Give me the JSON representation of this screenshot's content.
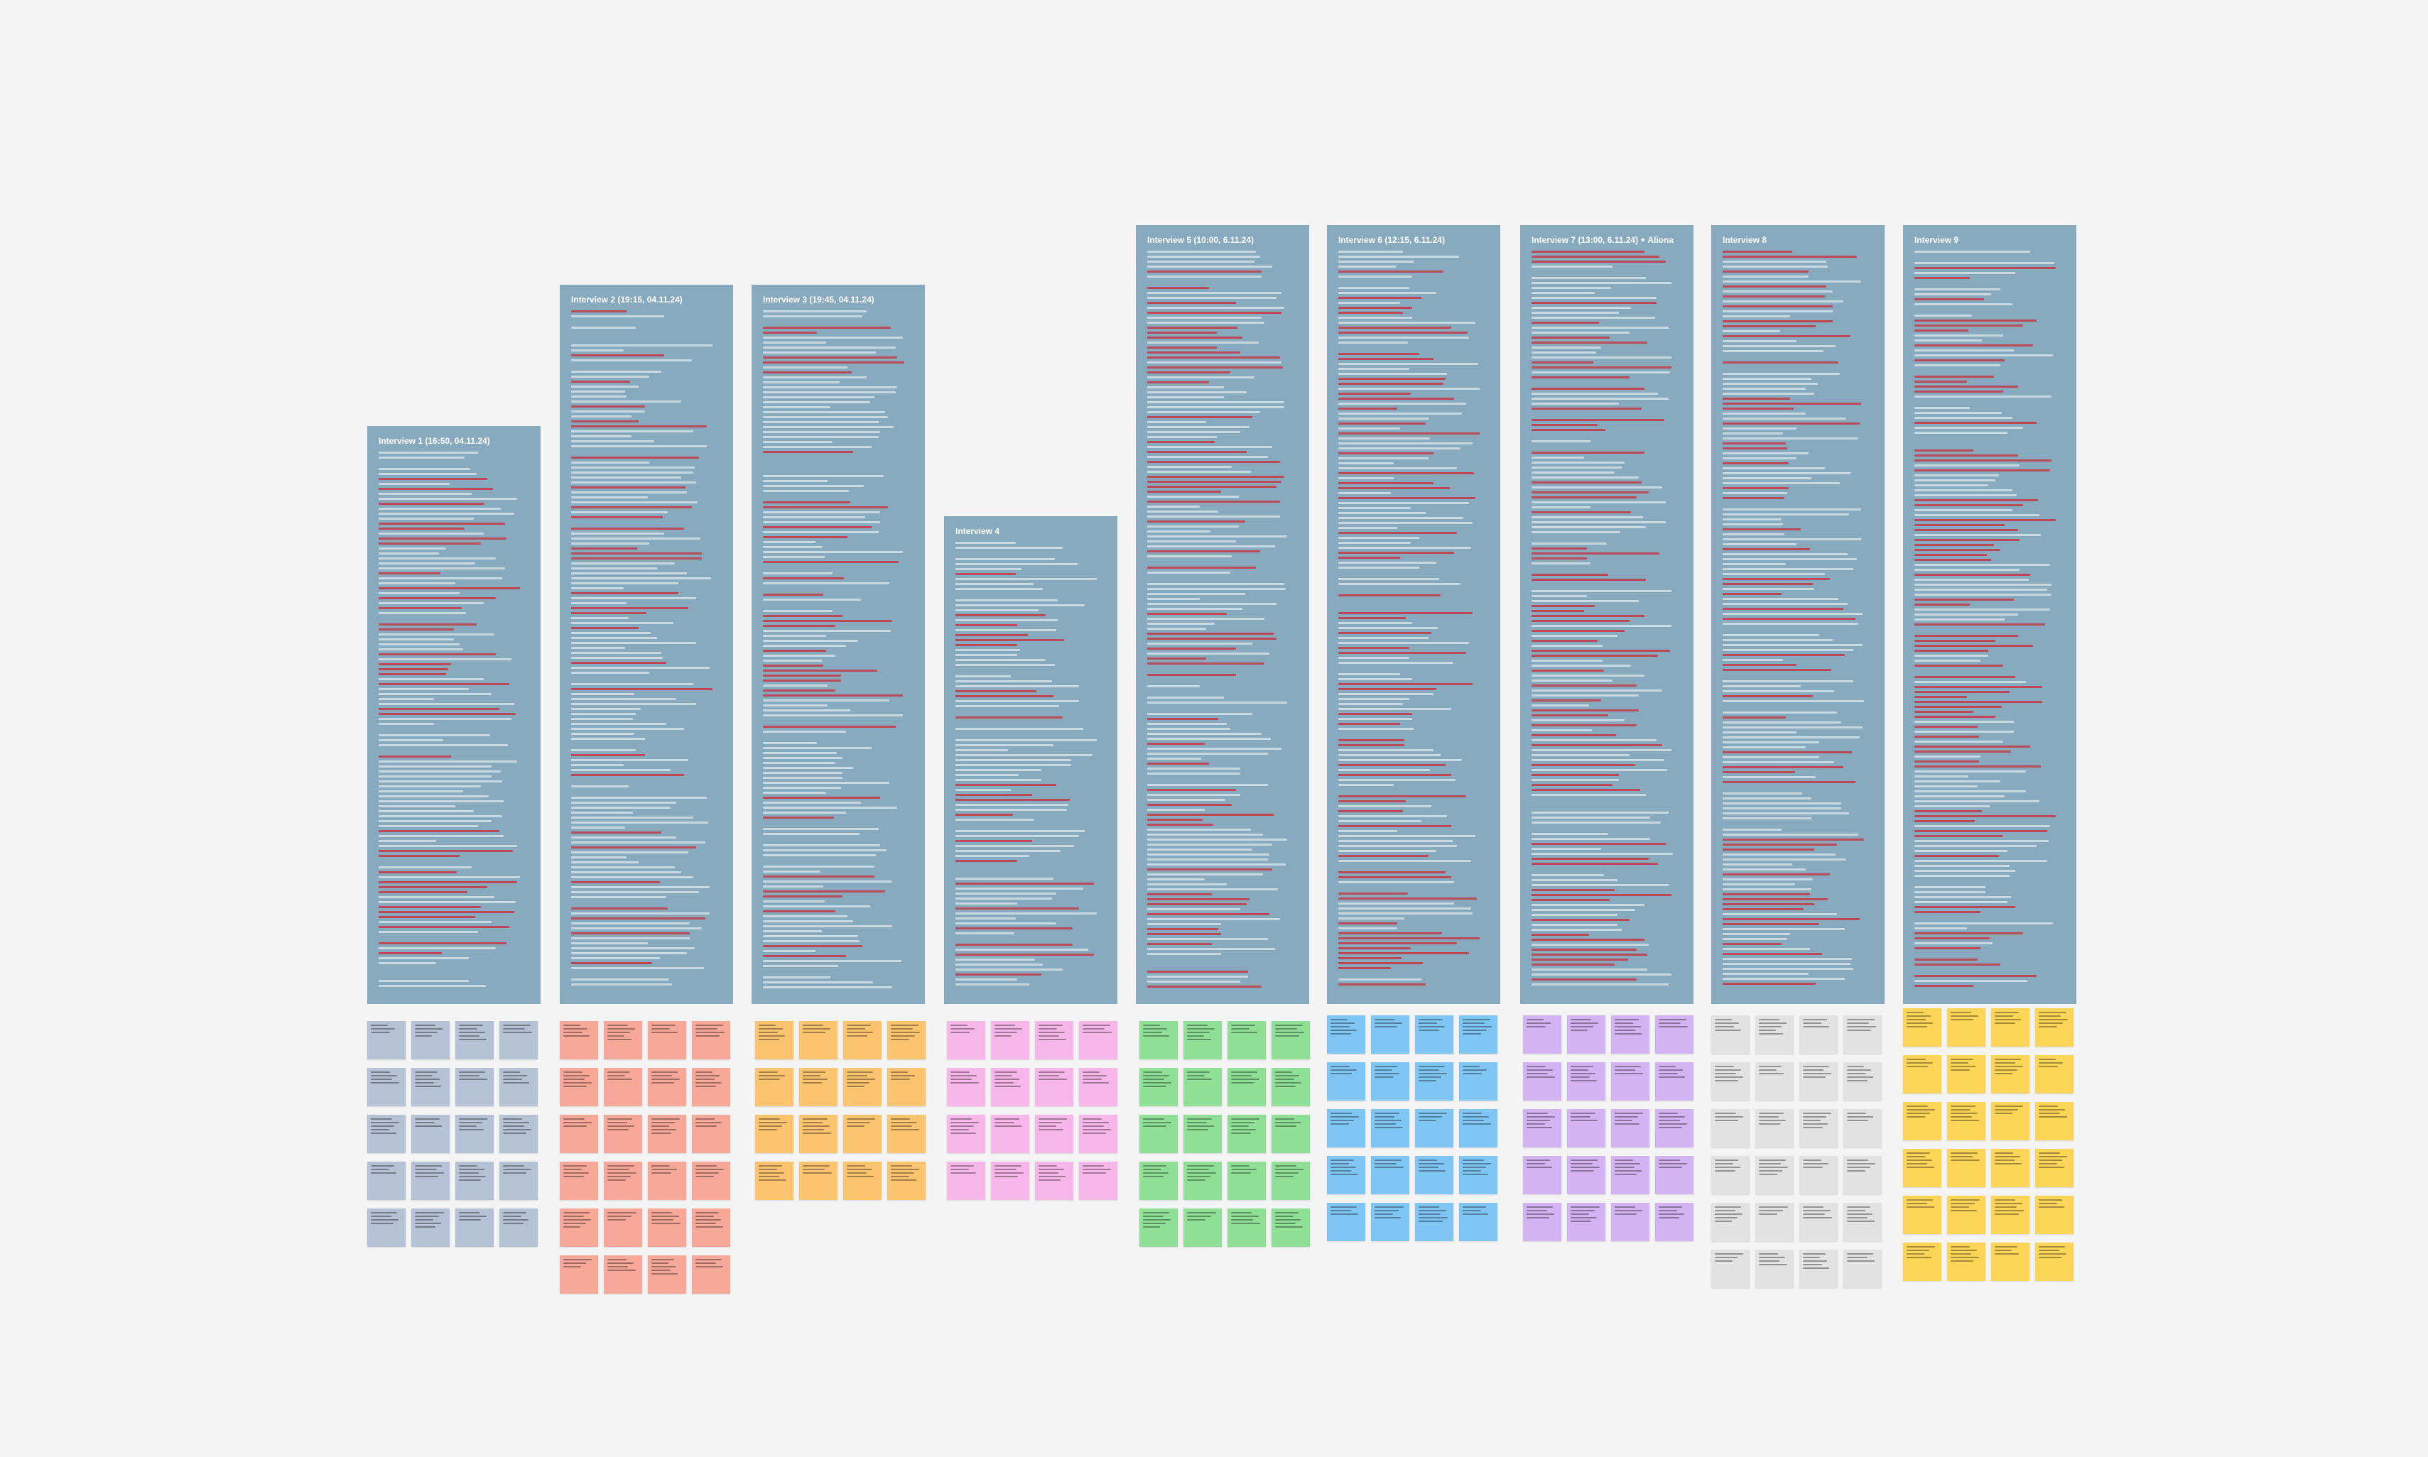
{
  "board": {
    "columns": [
      {
        "title": "Interview 1 (16:50, 04.11.24)",
        "sticky_color": "#b5c1d5",
        "sticky_rows": 5
      },
      {
        "title": "Interview 2 (19:15, 04.11.24)",
        "sticky_color": "#f8a898",
        "sticky_rows": 6
      },
      {
        "title": "Interview 3 (19:45, 04.11.24)",
        "sticky_color": "#fcc46e",
        "sticky_rows": 4
      },
      {
        "title": "Interview 4",
        "sticky_color": "#f7b7ea",
        "sticky_rows": 4
      },
      {
        "title": "Interview 5 (10:00, 6.11.24)",
        "sticky_color": "#8fe096",
        "sticky_rows": 5
      },
      {
        "title": "Interview 6 (12:15, 6.11.24)",
        "sticky_color": "#80c6f4",
        "sticky_rows": 5
      },
      {
        "title": "Interview 7 (13:00, 6.11.24) + Aliona",
        "sticky_color": "#d5b2f2",
        "sticky_rows": 5
      },
      {
        "title": "Interview 8",
        "sticky_color": "#e2e2e2",
        "sticky_rows": 6
      },
      {
        "title": "Interview 9",
        "sticky_color": "#fdd658",
        "sticky_rows": 6
      }
    ]
  }
}
